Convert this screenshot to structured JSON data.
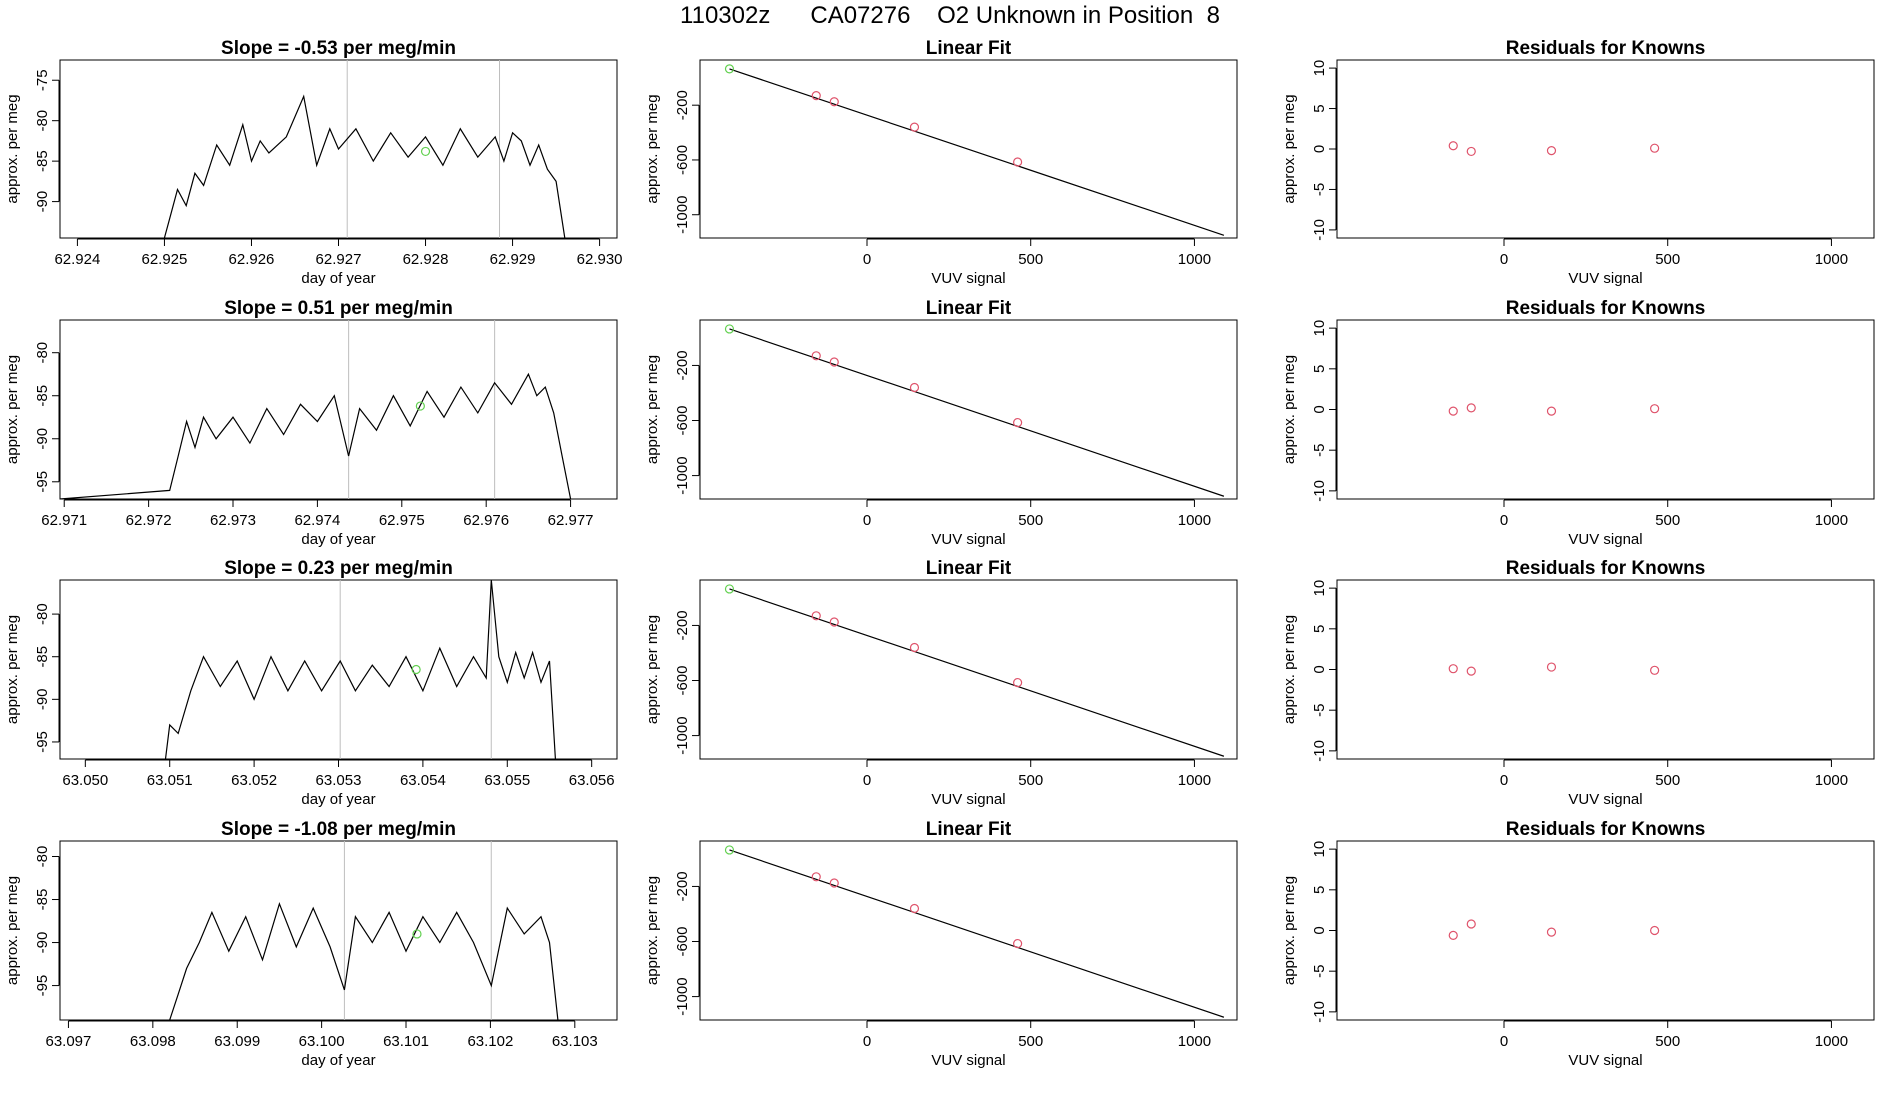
{
  "page_title": "110302z      CA07276    O2 Unknown in Position  8",
  "colors": {
    "line": "#000000",
    "vline": "#bebebe",
    "known": "#df536b",
    "highlight": "#61d04f"
  },
  "chart_data": [
    {
      "row": 1,
      "panel": "trace",
      "type": "line",
      "title": "Slope =  -0.53  per meg/min",
      "xlabel": "day of year",
      "ylabel": "approx. per meg",
      "xlim": [
        62.9238,
        62.9302
      ],
      "ylim": [
        -94.5,
        -72.5
      ],
      "xticks": [
        62.924,
        62.925,
        62.926,
        62.927,
        62.928,
        62.929,
        62.93
      ],
      "xtick_labels": [
        "62.924",
        "62.925",
        "62.926",
        "62.927",
        "62.928",
        "62.929",
        "62.930"
      ],
      "yticks": [
        -90,
        -85,
        -80,
        -75
      ],
      "ytick_labels": [
        "-90",
        "-85",
        "-80",
        "-75"
      ],
      "x": [
        62.925,
        62.92505,
        62.92515,
        62.92525,
        62.92535,
        62.92545,
        62.9256,
        62.92575,
        62.9259,
        62.926,
        62.9261,
        62.9262,
        62.9264,
        62.9266,
        62.92675,
        62.9269,
        62.927,
        62.9272,
        62.9274,
        62.9276,
        62.9278,
        62.928,
        62.9282,
        62.9284,
        62.9286,
        62.9288,
        62.9289,
        62.929,
        62.9291,
        62.9292,
        62.9293,
        62.9294,
        62.9295,
        62.9296
      ],
      "y": [
        -94.5,
        -92.5,
        -88.5,
        -90.5,
        -86.5,
        -88,
        -83,
        -85.5,
        -80.5,
        -85,
        -82.5,
        -84,
        -82,
        -77,
        -85.5,
        -81,
        -83.5,
        -81,
        -85,
        -81.5,
        -84.5,
        -82,
        -85.5,
        -81,
        -84.5,
        -82,
        -85,
        -81.5,
        -82.5,
        -85.5,
        -83,
        -86,
        -87.5,
        -94.5
      ],
      "vlines": [
        62.9271,
        62.92885
      ],
      "highlight": {
        "x": 62.928,
        "y": -83.8
      }
    },
    {
      "row": 1,
      "panel": "fit",
      "type": "line",
      "title": "Linear Fit",
      "xlabel": "VUV signal",
      "ylabel": "approx. per meg",
      "xlim": [
        -510,
        1130
      ],
      "ylim": [
        -1170,
        130
      ],
      "xticks": [
        0,
        500,
        1000
      ],
      "xtick_labels": [
        "0",
        "500",
        "1000"
      ],
      "yticks": [
        -1000,
        -600,
        -200
      ],
      "ytick_labels": [
        "-1000",
        "-600",
        "-200"
      ],
      "fit": {
        "x": [
          -420,
          1090
        ],
        "y": [
          65,
          -1150
        ]
      },
      "knowns": {
        "x": [
          -155,
          -100,
          145,
          460
        ],
        "y": [
          -130,
          -175,
          -360,
          -615
        ]
      },
      "highlight": {
        "x": -420,
        "y": 65
      }
    },
    {
      "row": 1,
      "panel": "resid",
      "type": "scatter",
      "title": "Residuals for Knowns",
      "xlabel": "VUV signal",
      "ylabel": "approx. per meg",
      "xlim": [
        -510,
        1130
      ],
      "ylim": [
        -11,
        11
      ],
      "xticks": [
        0,
        500,
        1000
      ],
      "xtick_labels": [
        "0",
        "500",
        "1000"
      ],
      "yticks": [
        -10,
        -5,
        0,
        5,
        10
      ],
      "ytick_labels": [
        "-10",
        "-5",
        "0",
        "5",
        "10"
      ],
      "x": [
        -155,
        -100,
        145,
        460
      ],
      "y": [
        0.4,
        -0.3,
        -0.2,
        0.1
      ]
    },
    {
      "row": 2,
      "panel": "trace",
      "type": "line",
      "title": "Slope =  0.51  per meg/min",
      "xlabel": "day of year",
      "ylabel": "approx. per meg",
      "xlim": [
        62.97095,
        62.97755
      ],
      "ylim": [
        -97,
        -76.2
      ],
      "xticks": [
        62.971,
        62.972,
        62.973,
        62.974,
        62.975,
        62.976,
        62.977
      ],
      "xtick_labels": [
        "62.971",
        "62.972",
        "62.973",
        "62.974",
        "62.975",
        "62.976",
        "62.977"
      ],
      "yticks": [
        -95,
        -90,
        -85,
        -80
      ],
      "ytick_labels": [
        "-95",
        "-90",
        "-85",
        "-80"
      ],
      "x": [
        62.97095,
        62.97225,
        62.97235,
        62.97245,
        62.97255,
        62.97265,
        62.9728,
        62.973,
        62.9732,
        62.9734,
        62.9736,
        62.9738,
        62.974,
        62.9742,
        62.97437,
        62.9745,
        62.9747,
        62.9749,
        62.9751,
        62.9753,
        62.9755,
        62.9757,
        62.9759,
        62.9761,
        62.9763,
        62.9765,
        62.9766,
        62.9767,
        62.9768,
        62.9769,
        62.977
      ],
      "y": [
        -97,
        -96,
        -92,
        -88,
        -91,
        -87.5,
        -90,
        -87.5,
        -90.5,
        -86.5,
        -89.5,
        -86,
        -88,
        -85,
        -92,
        -86.5,
        -89,
        -85,
        -88.5,
        -84.5,
        -87.5,
        -84,
        -87,
        -83.5,
        -86,
        -82.5,
        -85,
        -84,
        -87,
        -92,
        -97
      ],
      "vlines": [
        62.97437,
        62.9761
      ],
      "highlight": {
        "x": 62.97522,
        "y": -86.2
      }
    },
    {
      "row": 2,
      "panel": "fit",
      "type": "line",
      "title": "Linear Fit",
      "xlabel": "VUV signal",
      "ylabel": "approx. per meg",
      "xlim": [
        -510,
        1130
      ],
      "ylim": [
        -1170,
        130
      ],
      "xticks": [
        0,
        500,
        1000
      ],
      "xtick_labels": [
        "0",
        "500",
        "1000"
      ],
      "yticks": [
        -1000,
        -600,
        -200
      ],
      "ytick_labels": [
        "-1000",
        "-600",
        "-200"
      ],
      "fit": {
        "x": [
          -420,
          1090
        ],
        "y": [
          65,
          -1150
        ]
      },
      "knowns": {
        "x": [
          -155,
          -100,
          145,
          460
        ],
        "y": [
          -130,
          -175,
          -360,
          -615
        ]
      },
      "highlight": {
        "x": -420,
        "y": 65
      }
    },
    {
      "row": 2,
      "panel": "resid",
      "type": "scatter",
      "title": "Residuals for Knowns",
      "xlabel": "VUV signal",
      "ylabel": "approx. per meg",
      "xlim": [
        -510,
        1130
      ],
      "ylim": [
        -11,
        11
      ],
      "xticks": [
        0,
        500,
        1000
      ],
      "xtick_labels": [
        "0",
        "500",
        "1000"
      ],
      "yticks": [
        -10,
        -5,
        0,
        5,
        10
      ],
      "ytick_labels": [
        "-10",
        "-5",
        "0",
        "5",
        "10"
      ],
      "x": [
        -155,
        -100,
        145,
        460
      ],
      "y": [
        -0.2,
        0.2,
        -0.2,
        0.1
      ]
    },
    {
      "row": 3,
      "panel": "trace",
      "type": "line",
      "title": "Slope =  0.23  per meg/min",
      "xlabel": "day of year",
      "ylabel": "approx. per meg",
      "xlim": [
        63.0497,
        63.0563
      ],
      "ylim": [
        -97,
        -76
      ],
      "xticks": [
        63.05,
        63.051,
        63.052,
        63.053,
        63.054,
        63.055,
        63.056
      ],
      "xtick_labels": [
        "63.050",
        "63.051",
        "63.052",
        "63.053",
        "63.054",
        "63.055",
        "63.056"
      ],
      "yticks": [
        -95,
        -90,
        -85,
        -80
      ],
      "ytick_labels": [
        "-95",
        "-90",
        "-85",
        "-80"
      ],
      "x": [
        63.05095,
        63.051,
        63.0511,
        63.05125,
        63.0514,
        63.0516,
        63.0518,
        63.052,
        63.0522,
        63.0524,
        63.0526,
        63.0528,
        63.05302,
        63.0532,
        63.0534,
        63.0536,
        63.0538,
        63.054,
        63.0542,
        63.0544,
        63.0546,
        63.05475,
        63.05481,
        63.0549,
        63.055,
        63.0551,
        63.0552,
        63.0553,
        63.0554,
        63.0555,
        63.05557
      ],
      "y": [
        -97,
        -93,
        -94,
        -89,
        -85,
        -88.5,
        -85.5,
        -90,
        -85,
        -89,
        -85.5,
        -89,
        -85.5,
        -89,
        -86,
        -88.5,
        -85,
        -89,
        -84,
        -88.5,
        -85,
        -87.5,
        -76,
        -85,
        -88,
        -84.5,
        -87.5,
        -84.5,
        -88,
        -85.5,
        -97
      ],
      "vlines": [
        63.05302,
        63.05481
      ],
      "highlight": {
        "x": 63.05392,
        "y": -86.5
      }
    },
    {
      "row": 3,
      "panel": "fit",
      "type": "line",
      "title": "Linear Fit",
      "xlabel": "VUV signal",
      "ylabel": "approx. per meg",
      "xlim": [
        -510,
        1130
      ],
      "ylim": [
        -1170,
        130
      ],
      "xticks": [
        0,
        500,
        1000
      ],
      "xtick_labels": [
        "0",
        "500",
        "1000"
      ],
      "yticks": [
        -1000,
        -600,
        -200
      ],
      "ytick_labels": [
        "-1000",
        "-600",
        "-200"
      ],
      "fit": {
        "x": [
          -420,
          1090
        ],
        "y": [
          65,
          -1150
        ]
      },
      "knowns": {
        "x": [
          -155,
          -100,
          145,
          460
        ],
        "y": [
          -130,
          -175,
          -360,
          -615
        ]
      },
      "highlight": {
        "x": -420,
        "y": 65
      }
    },
    {
      "row": 3,
      "panel": "resid",
      "type": "scatter",
      "title": "Residuals for Knowns",
      "xlabel": "VUV signal",
      "ylabel": "approx. per meg",
      "xlim": [
        -510,
        1130
      ],
      "ylim": [
        -11,
        11
      ],
      "xticks": [
        0,
        500,
        1000
      ],
      "xtick_labels": [
        "0",
        "500",
        "1000"
      ],
      "yticks": [
        -10,
        -5,
        0,
        5,
        10
      ],
      "ytick_labels": [
        "-10",
        "-5",
        "0",
        "5",
        "10"
      ],
      "x": [
        -155,
        -100,
        145,
        460
      ],
      "y": [
        0.1,
        -0.2,
        0.3,
        -0.1
      ]
    },
    {
      "row": 4,
      "panel": "trace",
      "type": "line",
      "title": "Slope =  -1.08  per meg/min",
      "xlabel": "day of year",
      "ylabel": "approx. per meg",
      "xlim": [
        63.0969,
        63.1035
      ],
      "ylim": [
        -99,
        -78.2
      ],
      "xticks": [
        63.097,
        63.098,
        63.099,
        63.1,
        63.101,
        63.102,
        63.103
      ],
      "xtick_labels": [
        "63.097",
        "63.098",
        "63.099",
        "63.100",
        "63.101",
        "63.102",
        "63.103"
      ],
      "yticks": [
        -95,
        -90,
        -85,
        -80
      ],
      "ytick_labels": [
        "-95",
        "-90",
        "-85",
        "-80"
      ],
      "x": [
        63.0982,
        63.0983,
        63.0984,
        63.09855,
        63.0987,
        63.0989,
        63.0991,
        63.0993,
        63.0995,
        63.0997,
        63.0999,
        63.1001,
        63.10027,
        63.1004,
        63.1006,
        63.1008,
        63.101,
        63.1012,
        63.1014,
        63.1016,
        63.1018,
        63.10201,
        63.1022,
        63.1024,
        63.1026,
        63.1027,
        63.1028
      ],
      "y": [
        -99,
        -96,
        -93,
        -90,
        -86.5,
        -91,
        -87,
        -92,
        -85.5,
        -90.5,
        -86,
        -90.5,
        -95.5,
        -87,
        -90,
        -86.5,
        -91,
        -87,
        -90,
        -86.5,
        -90,
        -95,
        -86,
        -89,
        -87,
        -90,
        -99
      ],
      "vlines": [
        63.10027,
        63.10201
      ],
      "highlight": {
        "x": 63.10113,
        "y": -89
      }
    },
    {
      "row": 4,
      "panel": "fit",
      "type": "line",
      "title": "Linear Fit",
      "xlabel": "VUV signal",
      "ylabel": "approx. per meg",
      "xlim": [
        -510,
        1130
      ],
      "ylim": [
        -1170,
        130
      ],
      "xticks": [
        0,
        500,
        1000
      ],
      "xtick_labels": [
        "0",
        "500",
        "1000"
      ],
      "yticks": [
        -1000,
        -600,
        -200
      ],
      "ytick_labels": [
        "-1000",
        "-600",
        "-200"
      ],
      "fit": {
        "x": [
          -420,
          1090
        ],
        "y": [
          65,
          -1150
        ]
      },
      "knowns": {
        "x": [
          -155,
          -100,
          145,
          460
        ],
        "y": [
          -130,
          -175,
          -360,
          -615
        ]
      },
      "highlight": {
        "x": -420,
        "y": 65
      }
    },
    {
      "row": 4,
      "panel": "resid",
      "type": "scatter",
      "title": "Residuals for Knowns",
      "xlabel": "VUV signal",
      "ylabel": "approx. per meg",
      "xlim": [
        -510,
        1130
      ],
      "ylim": [
        -11,
        11
      ],
      "xticks": [
        0,
        500,
        1000
      ],
      "xtick_labels": [
        "0",
        "500",
        "1000"
      ],
      "yticks": [
        -10,
        -5,
        0,
        5,
        10
      ],
      "ytick_labels": [
        "-10",
        "-5",
        "0",
        "5",
        "10"
      ],
      "x": [
        -155,
        -100,
        145,
        460
      ],
      "y": [
        -0.6,
        0.8,
        -0.2,
        0.0
      ]
    }
  ]
}
